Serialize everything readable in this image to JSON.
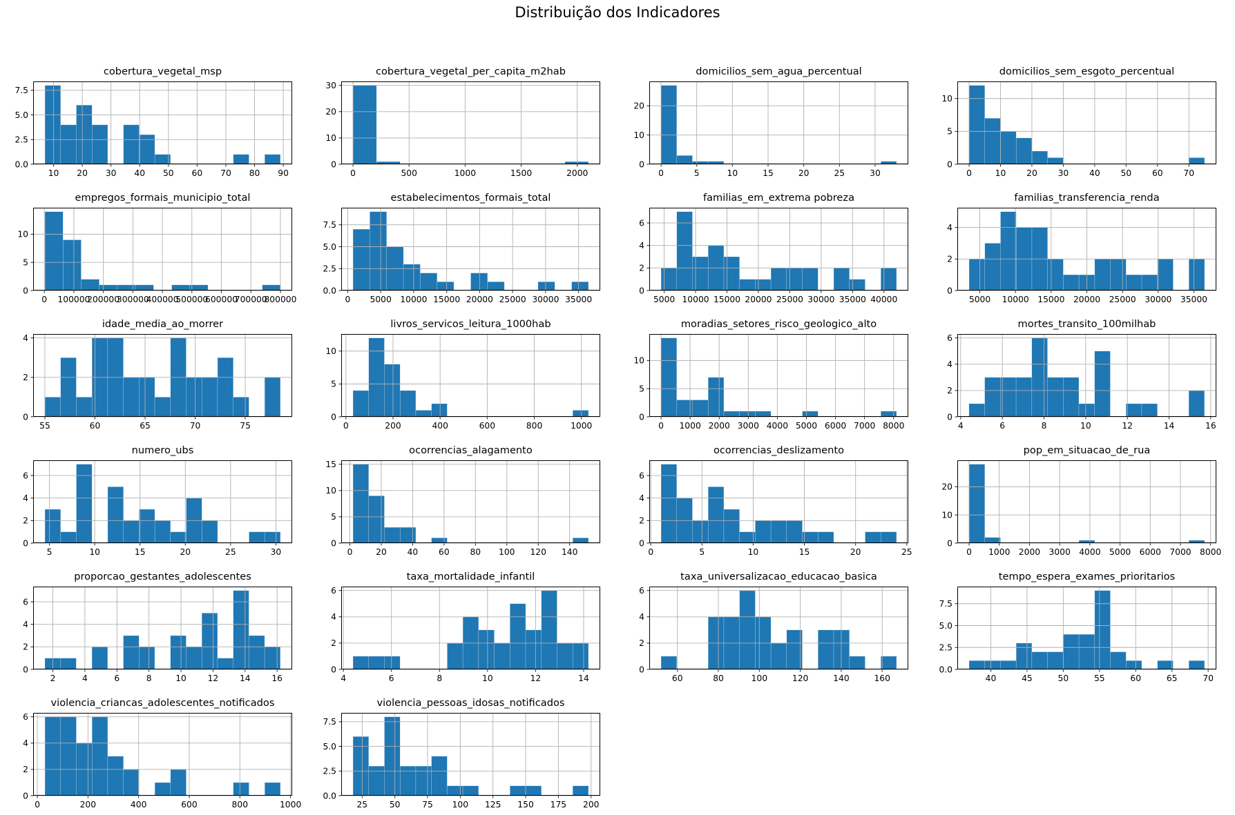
{
  "figure": {
    "suptitle": "Distribuição dos Indicadores",
    "bar_color": "#1f77b4",
    "grid_color": "#b0b0b0",
    "text_color": "#000000",
    "background": "#ffffff"
  },
  "chart_data": [
    {
      "type": "histogram",
      "title": "cobertura_vegetal_msp",
      "bins": [
        8,
        4,
        6,
        4,
        0,
        4,
        3,
        1,
        0,
        0,
        0,
        0,
        1,
        0,
        1
      ],
      "bin_start": 7,
      "bin_end": 89,
      "xlim": [
        2.9,
        93.1
      ],
      "xticks": [
        10,
        20,
        30,
        40,
        50,
        60,
        70,
        80,
        90
      ],
      "yticks": [
        "0.0",
        "2.5",
        "5.0",
        "7.5"
      ],
      "ylim": [
        0,
        8.4
      ]
    },
    {
      "type": "histogram",
      "title": "cobertura_vegetal_per_capita_m2hab",
      "bins": [
        30,
        1,
        0,
        0,
        0,
        0,
        0,
        0,
        0,
        1
      ],
      "bin_start": 0,
      "bin_end": 2100,
      "xlim": [
        -105,
        2205
      ],
      "xticks": [
        0,
        500,
        1000,
        1500,
        2000
      ],
      "yticks": [
        "0",
        "10",
        "20",
        "30"
      ],
      "ylim": [
        0,
        31.5
      ]
    },
    {
      "type": "histogram",
      "title": "domicilios_sem_agua_percentual",
      "bins": [
        27,
        3,
        1,
        1,
        0,
        0,
        0,
        0,
        0,
        0,
        0,
        0,
        0,
        0,
        1
      ],
      "bin_start": 0,
      "bin_end": 33,
      "xlim": [
        -1.65,
        34.65
      ],
      "xticks": [
        0,
        5,
        10,
        15,
        20,
        25,
        30
      ],
      "yticks": [
        "0",
        "10",
        "20"
      ],
      "ylim": [
        0,
        28.35
      ]
    },
    {
      "type": "histogram",
      "title": "domicilios_sem_esgoto_percentual",
      "bins": [
        12,
        7,
        5,
        4,
        2,
        1,
        0,
        0,
        0,
        0,
        0,
        0,
        0,
        0,
        1
      ],
      "bin_start": 0,
      "bin_end": 75,
      "xlim": [
        -3.75,
        78.75
      ],
      "xticks": [
        0,
        10,
        20,
        30,
        40,
        50,
        60,
        70
      ],
      "yticks": [
        "0",
        "5",
        "10"
      ],
      "ylim": [
        0,
        12.6
      ]
    },
    {
      "type": "histogram",
      "title": "empregos_formais_municipio_total",
      "bins": [
        14,
        9,
        2,
        1,
        1,
        1,
        0,
        1,
        1,
        0,
        0,
        0,
        1
      ],
      "bin_start": 2000,
      "bin_end": 800000,
      "xlim": [
        -37900,
        839900
      ],
      "xticks": [
        0,
        100000,
        200000,
        300000,
        400000,
        500000,
        600000,
        700000,
        800000
      ],
      "yticks": [
        "0",
        "5",
        "10"
      ],
      "ylim": [
        0,
        14.7
      ]
    },
    {
      "type": "histogram",
      "title": "estabelecimentos_formais_total",
      "bins": [
        7,
        9,
        5,
        3,
        2,
        1,
        0,
        2,
        1,
        0,
        0,
        1,
        0,
        1
      ],
      "bin_start": 800,
      "bin_end": 36500,
      "xlim": [
        -985,
        38285
      ],
      "xticks": [
        0,
        5000,
        10000,
        15000,
        20000,
        25000,
        30000,
        35000
      ],
      "yticks": [
        "0.0",
        "2.5",
        "5.0",
        "7.5"
      ],
      "ylim": [
        0,
        9.45
      ]
    },
    {
      "type": "histogram",
      "title": "familias_em_extrema pobreza",
      "bins": [
        2,
        7,
        3,
        4,
        3,
        1,
        1,
        2,
        2,
        2,
        0,
        2,
        1,
        0,
        2
      ],
      "bin_start": 4500,
      "bin_end": 42000,
      "xlim": [
        2625,
        43875
      ],
      "xticks": [
        5000,
        10000,
        15000,
        20000,
        25000,
        30000,
        35000,
        40000
      ],
      "yticks": [
        "0",
        "2",
        "4",
        "6"
      ],
      "ylim": [
        0,
        7.35
      ]
    },
    {
      "type": "histogram",
      "title": "familias_transferencia_renda",
      "bins": [
        2,
        3,
        5,
        4,
        4,
        2,
        1,
        1,
        2,
        2,
        1,
        1,
        2,
        0,
        2
      ],
      "bin_start": 3500,
      "bin_end": 36500,
      "xlim": [
        1850,
        38150
      ],
      "xticks": [
        5000,
        10000,
        15000,
        20000,
        25000,
        30000,
        35000
      ],
      "yticks": [
        "0",
        "2",
        "4"
      ],
      "ylim": [
        0,
        5.25
      ]
    },
    {
      "type": "histogram",
      "title": "idade_media_ao_morrer",
      "bins": [
        1,
        3,
        1,
        4,
        4,
        2,
        2,
        1,
        4,
        2,
        2,
        3,
        1,
        0,
        2
      ],
      "bin_start": 55,
      "bin_end": 78.5,
      "xlim": [
        53.83,
        79.68
      ],
      "xticks": [
        55,
        60,
        65,
        70,
        75
      ],
      "yticks": [
        "0",
        "2",
        "4"
      ],
      "ylim": [
        0,
        4.2
      ]
    },
    {
      "type": "histogram",
      "title": "livros_servicos_leitura_1000hab",
      "bins": [
        4,
        12,
        8,
        4,
        1,
        2,
        0,
        0,
        0,
        0,
        0,
        0,
        0,
        0,
        1
      ],
      "bin_start": 30,
      "bin_end": 1030,
      "xlim": [
        -20,
        1080
      ],
      "xticks": [
        0,
        200,
        400,
        600,
        800,
        1000
      ],
      "yticks": [
        "0",
        "5",
        "10"
      ],
      "ylim": [
        0,
        12.6
      ]
    },
    {
      "type": "histogram",
      "title": "moradias_setores_risco_geologico_alto",
      "bins": [
        14,
        3,
        3,
        7,
        1,
        1,
        1,
        0,
        0,
        1,
        0,
        0,
        0,
        0,
        1
      ],
      "bin_start": 0,
      "bin_end": 8100,
      "xlim": [
        -405,
        8505
      ],
      "xticks": [
        0,
        1000,
        2000,
        3000,
        4000,
        5000,
        6000,
        7000,
        8000
      ],
      "yticks": [
        "0",
        "5",
        "10"
      ],
      "ylim": [
        0,
        14.7
      ]
    },
    {
      "type": "histogram",
      "title": "mortes_transito_100milhab",
      "bins": [
        1,
        3,
        3,
        3,
        6,
        3,
        3,
        1,
        5,
        0,
        1,
        1,
        0,
        0,
        2
      ],
      "bin_start": 4.4,
      "bin_end": 15.7,
      "xlim": [
        3.84,
        16.27
      ],
      "xticks": [
        4,
        6,
        8,
        10,
        12,
        14,
        16
      ],
      "yticks": [
        "0",
        "2",
        "4",
        "6"
      ],
      "ylim": [
        0,
        6.3
      ]
    },
    {
      "type": "histogram",
      "title": "numero_ubs",
      "bins": [
        3,
        1,
        7,
        0,
        5,
        2,
        3,
        2,
        1,
        4,
        2,
        0,
        0,
        1,
        1
      ],
      "bin_start": 4.5,
      "bin_end": 30.5,
      "xlim": [
        3.2,
        31.8
      ],
      "xticks": [
        5,
        10,
        15,
        20,
        25,
        30
      ],
      "yticks": [
        "0",
        "2",
        "4",
        "6"
      ],
      "ylim": [
        0,
        7.35
      ]
    },
    {
      "type": "histogram",
      "title": "ocorrencias_alagamento",
      "bins": [
        15,
        9,
        3,
        3,
        0,
        1,
        0,
        0,
        0,
        0,
        0,
        0,
        0,
        0,
        1
      ],
      "bin_start": 2,
      "bin_end": 152,
      "xlim": [
        -5.5,
        159.5
      ],
      "xticks": [
        0,
        20,
        40,
        60,
        80,
        100,
        120,
        140
      ],
      "yticks": [
        "0",
        "5",
        "10",
        "15"
      ],
      "ylim": [
        0,
        15.75
      ]
    },
    {
      "type": "histogram",
      "title": "ocorrencias_deslizamento",
      "bins": [
        7,
        4,
        2,
        5,
        3,
        1,
        2,
        2,
        2,
        1,
        1,
        0,
        0,
        1,
        1
      ],
      "bin_start": 1,
      "bin_end": 24,
      "xlim": [
        -0.15,
        25.15
      ],
      "xticks": [
        0,
        5,
        10,
        15,
        20,
        25
      ],
      "yticks": [
        "0",
        "2",
        "4",
        "6"
      ],
      "ylim": [
        0,
        7.35
      ]
    },
    {
      "type": "histogram",
      "title": "pop_em_situacao_de_rua",
      "bins": [
        28,
        2,
        0,
        0,
        0,
        0,
        0,
        1,
        0,
        0,
        0,
        0,
        0,
        0,
        1
      ],
      "bin_start": 0,
      "bin_end": 7800,
      "xlim": [
        -390,
        8190
      ],
      "xticks": [
        0,
        1000,
        2000,
        3000,
        4000,
        5000,
        6000,
        7000,
        8000
      ],
      "yticks": [
        "0",
        "10",
        "20"
      ],
      "ylim": [
        0,
        29.4
      ]
    },
    {
      "type": "histogram",
      "title": "proporcao_gestantes_adolescentes",
      "bins": [
        1,
        1,
        0,
        2,
        0,
        3,
        2,
        0,
        3,
        2,
        5,
        1,
        7,
        3,
        2
      ],
      "bin_start": 1.5,
      "bin_end": 16.2,
      "xlim": [
        0.77,
        16.94
      ],
      "xticks": [
        2,
        4,
        6,
        8,
        10,
        12,
        14,
        16
      ],
      "yticks": [
        "0",
        "2",
        "4",
        "6"
      ],
      "ylim": [
        0,
        7.35
      ]
    },
    {
      "type": "histogram",
      "title": "taxa_mortalidade_infantil",
      "bins": [
        1,
        1,
        1,
        0,
        0,
        0,
        2,
        4,
        3,
        2,
        5,
        3,
        6,
        2,
        2
      ],
      "bin_start": 4.4,
      "bin_end": 14.2,
      "xlim": [
        3.91,
        14.69
      ],
      "xticks": [
        4,
        6,
        8,
        10,
        12,
        14
      ],
      "yticks": [
        "0",
        "2",
        "4",
        "6"
      ],
      "ylim": [
        0,
        6.3
      ]
    },
    {
      "type": "histogram",
      "title": "taxa_universalizacao_educacao_basica",
      "bins": [
        1,
        0,
        0,
        4,
        4,
        6,
        4,
        2,
        3,
        0,
        3,
        3,
        1,
        0,
        1
      ],
      "bin_start": 52,
      "bin_end": 167,
      "xlim": [
        46.25,
        172.75
      ],
      "xticks": [
        60,
        80,
        100,
        120,
        140,
        160
      ],
      "yticks": [
        "0",
        "2",
        "4",
        "6"
      ],
      "ylim": [
        0,
        6.3
      ]
    },
    {
      "type": "histogram",
      "title": "tempo_espera_exames_prioritarios",
      "bins": [
        1,
        1,
        1,
        3,
        2,
        2,
        4,
        4,
        9,
        2,
        1,
        0,
        1,
        0,
        1
      ],
      "bin_start": 37,
      "bin_end": 69.5,
      "xlim": [
        35.38,
        71.13
      ],
      "xticks": [
        40,
        45,
        50,
        55,
        60,
        65,
        70
      ],
      "yticks": [
        "0.0",
        "2.5",
        "5.0",
        "7.5"
      ],
      "ylim": [
        0,
        9.45
      ]
    },
    {
      "type": "histogram",
      "title": "violencia_criancas_adolescentes_notificados",
      "bins": [
        6,
        6,
        4,
        6,
        3,
        2,
        0,
        1,
        2,
        0,
        0,
        0,
        1,
        0,
        1
      ],
      "bin_start": 30,
      "bin_end": 960,
      "xlim": [
        -16.5,
        1006.5
      ],
      "xticks": [
        0,
        200,
        400,
        600,
        800,
        1000
      ],
      "yticks": [
        "0",
        "2",
        "4",
        "6"
      ],
      "ylim": [
        0,
        6.3
      ]
    },
    {
      "type": "histogram",
      "title": "violencia_pessoas_idosas_notificados",
      "bins": [
        6,
        3,
        8,
        3,
        3,
        4,
        1,
        1,
        0,
        0,
        1,
        1,
        0,
        0,
        1
      ],
      "bin_start": 18,
      "bin_end": 198,
      "xlim": [
        9,
        207
      ],
      "xticks": [
        25,
        50,
        75,
        100,
        125,
        150,
        175,
        200
      ],
      "yticks": [
        "0.0",
        "2.5",
        "5.0",
        "7.5"
      ],
      "ylim": [
        0,
        8.4
      ]
    }
  ]
}
